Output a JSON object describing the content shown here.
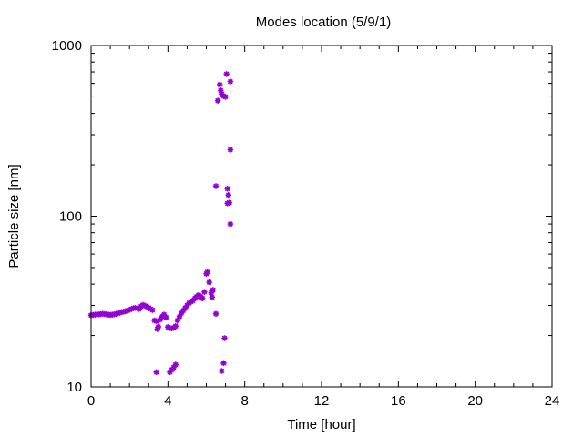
{
  "chart_data": {
    "type": "scatter",
    "title": "Modes location (5/9/1)",
    "xlabel": "Time [hour]",
    "ylabel": "Particle size [nm]",
    "xlim": [
      0,
      24
    ],
    "ylim": [
      10,
      1000
    ],
    "yscale": "log",
    "xticks": [
      0,
      4,
      8,
      12,
      16,
      20,
      24
    ],
    "xtick_labels": [
      "0",
      "4",
      "8",
      "12",
      "16",
      "20",
      "24"
    ],
    "yticks": [
      10,
      100,
      1000
    ],
    "ytick_labels": [
      "10",
      "100",
      "1000"
    ],
    "grid": false,
    "legend": "none",
    "marker_color": "#9400d3",
    "marker": "asterisk",
    "series": [
      {
        "points": [
          [
            0.0,
            26.3
          ],
          [
            0.1,
            26.4
          ],
          [
            0.2,
            26.5
          ],
          [
            0.3,
            26.6
          ],
          [
            0.4,
            26.6
          ],
          [
            0.5,
            26.7
          ],
          [
            0.6,
            26.8
          ],
          [
            0.7,
            26.7
          ],
          [
            0.8,
            26.6
          ],
          [
            0.9,
            26.5
          ],
          [
            1.0,
            26.4
          ],
          [
            1.1,
            26.5
          ],
          [
            1.2,
            26.6
          ],
          [
            1.3,
            26.8
          ],
          [
            1.4,
            27.0
          ],
          [
            1.5,
            27.2
          ],
          [
            1.6,
            27.4
          ],
          [
            1.7,
            27.6
          ],
          [
            1.8,
            27.8
          ],
          [
            1.9,
            28.0
          ],
          [
            2.0,
            28.3
          ],
          [
            2.1,
            28.6
          ],
          [
            2.2,
            28.9
          ],
          [
            2.3,
            29.0
          ],
          [
            2.5,
            28.6
          ],
          [
            2.6,
            29.6
          ],
          [
            2.7,
            30.2
          ],
          [
            2.8,
            29.9
          ],
          [
            2.9,
            29.5
          ],
          [
            3.0,
            29.1
          ],
          [
            3.1,
            28.6
          ],
          [
            3.2,
            28.2
          ],
          [
            3.3,
            24.5
          ],
          [
            3.4,
            24.3
          ],
          [
            3.45,
            21.8
          ],
          [
            3.5,
            22.5
          ],
          [
            3.6,
            24.8
          ],
          [
            3.7,
            25.8
          ],
          [
            3.8,
            26.5
          ],
          [
            3.9,
            25.5
          ],
          [
            4.0,
            22.4
          ],
          [
            4.1,
            22.1
          ],
          [
            4.2,
            22.0
          ],
          [
            4.3,
            22.2
          ],
          [
            4.4,
            22.7
          ],
          [
            4.5,
            24.5
          ],
          [
            4.6,
            25.8
          ],
          [
            4.7,
            27.0
          ],
          [
            4.8,
            28.0
          ],
          [
            4.9,
            29.0
          ],
          [
            5.0,
            30.0
          ],
          [
            5.1,
            31.0
          ],
          [
            5.2,
            31.5
          ],
          [
            5.3,
            32.0
          ],
          [
            5.4,
            33.0
          ],
          [
            5.5,
            33.8
          ],
          [
            5.6,
            34.5
          ],
          [
            5.7,
            33.8
          ],
          [
            5.8,
            33.0
          ],
          [
            5.9,
            36.0
          ],
          [
            6.0,
            46.0
          ],
          [
            6.05,
            47.0
          ],
          [
            6.15,
            41.0
          ],
          [
            6.25,
            35.5
          ],
          [
            6.3,
            36.5
          ],
          [
            6.35,
            37.0
          ],
          [
            6.3,
            33.5
          ],
          [
            6.5,
            26.8
          ],
          [
            6.5,
            150
          ],
          [
            6.6,
            475
          ],
          [
            6.7,
            590
          ],
          [
            6.75,
            545
          ],
          [
            6.8,
            520
          ],
          [
            6.9,
            505
          ],
          [
            7.0,
            500
          ],
          [
            7.05,
            680
          ],
          [
            7.1,
            145
          ],
          [
            7.1,
            119
          ],
          [
            7.15,
            133
          ],
          [
            7.2,
            120
          ],
          [
            7.25,
            615
          ],
          [
            7.25,
            245
          ],
          [
            7.25,
            90
          ],
          [
            3.4,
            12.2
          ],
          [
            4.1,
            12.2
          ],
          [
            4.2,
            12.6
          ],
          [
            4.3,
            13.0
          ],
          [
            4.4,
            13.5
          ],
          [
            6.8,
            12.4
          ],
          [
            6.9,
            13.8
          ],
          [
            6.95,
            19.3
          ]
        ]
      }
    ]
  }
}
